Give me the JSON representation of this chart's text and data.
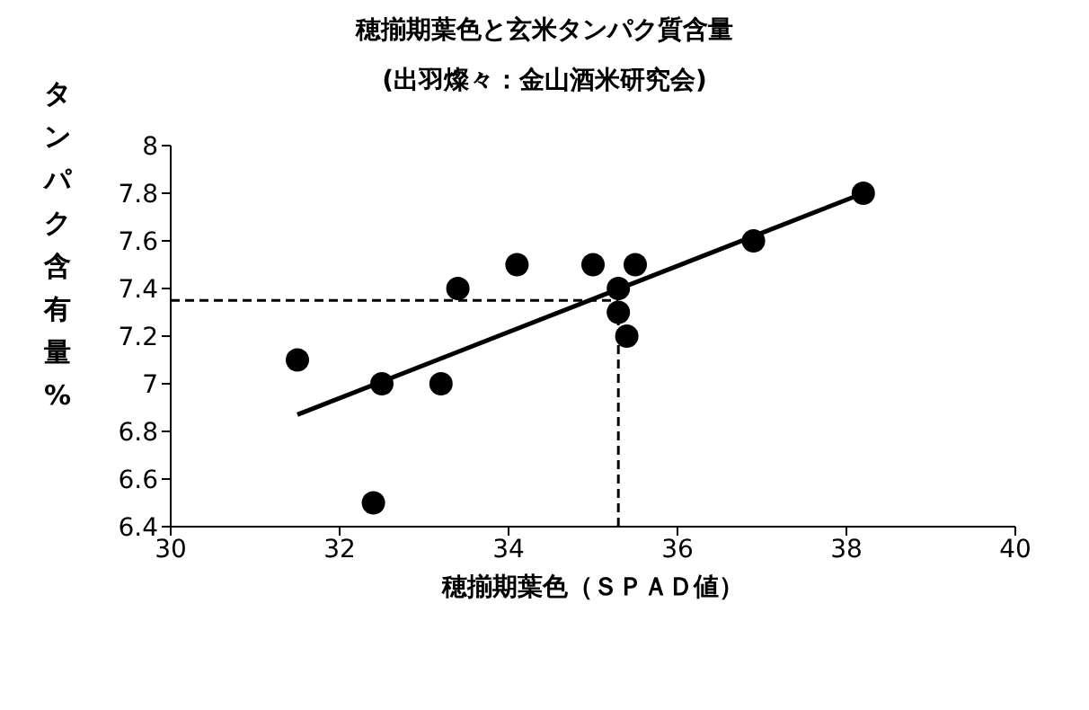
{
  "chart_data": {
    "type": "scatter",
    "title": "穂揃期葉色と玄米タンパク質含量",
    "subtitle": "(出羽燦々：金山酒米研究会)",
    "xlabel": "穂揃期葉色（ＳＰＡＤ値）",
    "ylabel": "タンパク含有量%",
    "series": [
      {
        "color": "#000000",
        "marker": "circle",
        "x": [
          31.5,
          32.5,
          33.2,
          32.4,
          33.4,
          34.1,
          35.0,
          35.3,
          35.3,
          35.4,
          35.5,
          36.9,
          38.2
        ],
        "values": [
          7.1,
          7.0,
          7.0,
          6.5,
          7.4,
          7.5,
          7.5,
          7.4,
          7.3,
          7.2,
          7.5,
          7.6,
          7.8
        ]
      },
      {
        "type": "line",
        "color": "#000000",
        "marker": "none",
        "line_style": "solid",
        "x": [
          31.5,
          38.2
        ],
        "values": [
          6.87,
          7.8
        ]
      }
    ],
    "ref_lines": [
      {
        "axis": "x",
        "value": 35.3,
        "line_style": "dashed",
        "color": "#000000"
      },
      {
        "axis": "y",
        "value": 7.35,
        "line_style": "dashed",
        "color": "#000000"
      }
    ],
    "xlim": [
      30,
      40
    ],
    "xticks": [
      30,
      32,
      34,
      36,
      38,
      40
    ],
    "ylim": [
      6.4,
      8
    ],
    "yticks": [
      6.4,
      6.6,
      6.8,
      7,
      7.2,
      7.4,
      7.6,
      7.8,
      8
    ],
    "grid": false,
    "legend": false
  }
}
